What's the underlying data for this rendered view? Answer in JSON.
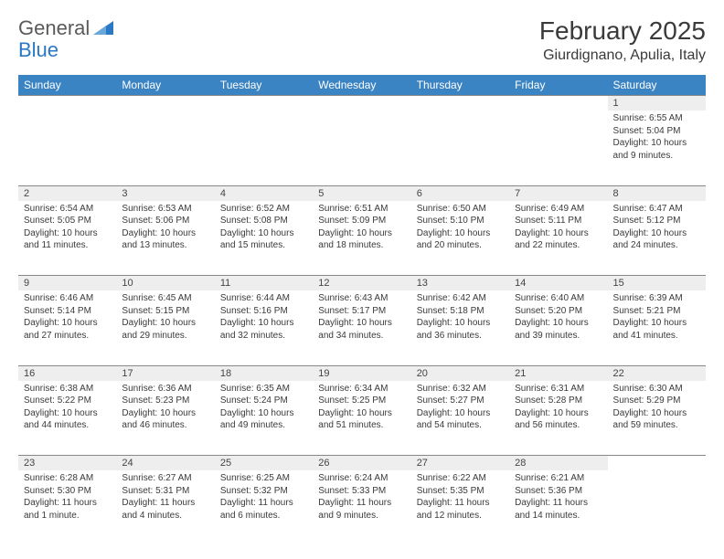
{
  "logo": {
    "word1": "General",
    "word2": "Blue"
  },
  "title": "February 2025",
  "location": "Giurdignano, Apulia, Italy",
  "colors": {
    "header_bg": "#3b84c4",
    "header_text": "#ffffff",
    "daynum_bg": "#eeeeee",
    "border": "#888888",
    "text": "#3a3a3a",
    "logo_gray": "#5a5a5a",
    "logo_blue": "#2b78c4"
  },
  "weekdays": [
    "Sunday",
    "Monday",
    "Tuesday",
    "Wednesday",
    "Thursday",
    "Friday",
    "Saturday"
  ],
  "layout": {
    "first_weekday_index": 6,
    "days_in_month": 28
  },
  "days": {
    "1": {
      "sunrise": "6:55 AM",
      "sunset": "5:04 PM",
      "daylight": "10 hours and 9 minutes."
    },
    "2": {
      "sunrise": "6:54 AM",
      "sunset": "5:05 PM",
      "daylight": "10 hours and 11 minutes."
    },
    "3": {
      "sunrise": "6:53 AM",
      "sunset": "5:06 PM",
      "daylight": "10 hours and 13 minutes."
    },
    "4": {
      "sunrise": "6:52 AM",
      "sunset": "5:08 PM",
      "daylight": "10 hours and 15 minutes."
    },
    "5": {
      "sunrise": "6:51 AM",
      "sunset": "5:09 PM",
      "daylight": "10 hours and 18 minutes."
    },
    "6": {
      "sunrise": "6:50 AM",
      "sunset": "5:10 PM",
      "daylight": "10 hours and 20 minutes."
    },
    "7": {
      "sunrise": "6:49 AM",
      "sunset": "5:11 PM",
      "daylight": "10 hours and 22 minutes."
    },
    "8": {
      "sunrise": "6:47 AM",
      "sunset": "5:12 PM",
      "daylight": "10 hours and 24 minutes."
    },
    "9": {
      "sunrise": "6:46 AM",
      "sunset": "5:14 PM",
      "daylight": "10 hours and 27 minutes."
    },
    "10": {
      "sunrise": "6:45 AM",
      "sunset": "5:15 PM",
      "daylight": "10 hours and 29 minutes."
    },
    "11": {
      "sunrise": "6:44 AM",
      "sunset": "5:16 PM",
      "daylight": "10 hours and 32 minutes."
    },
    "12": {
      "sunrise": "6:43 AM",
      "sunset": "5:17 PM",
      "daylight": "10 hours and 34 minutes."
    },
    "13": {
      "sunrise": "6:42 AM",
      "sunset": "5:18 PM",
      "daylight": "10 hours and 36 minutes."
    },
    "14": {
      "sunrise": "6:40 AM",
      "sunset": "5:20 PM",
      "daylight": "10 hours and 39 minutes."
    },
    "15": {
      "sunrise": "6:39 AM",
      "sunset": "5:21 PM",
      "daylight": "10 hours and 41 minutes."
    },
    "16": {
      "sunrise": "6:38 AM",
      "sunset": "5:22 PM",
      "daylight": "10 hours and 44 minutes."
    },
    "17": {
      "sunrise": "6:36 AM",
      "sunset": "5:23 PM",
      "daylight": "10 hours and 46 minutes."
    },
    "18": {
      "sunrise": "6:35 AM",
      "sunset": "5:24 PM",
      "daylight": "10 hours and 49 minutes."
    },
    "19": {
      "sunrise": "6:34 AM",
      "sunset": "5:25 PM",
      "daylight": "10 hours and 51 minutes."
    },
    "20": {
      "sunrise": "6:32 AM",
      "sunset": "5:27 PM",
      "daylight": "10 hours and 54 minutes."
    },
    "21": {
      "sunrise": "6:31 AM",
      "sunset": "5:28 PM",
      "daylight": "10 hours and 56 minutes."
    },
    "22": {
      "sunrise": "6:30 AM",
      "sunset": "5:29 PM",
      "daylight": "10 hours and 59 minutes."
    },
    "23": {
      "sunrise": "6:28 AM",
      "sunset": "5:30 PM",
      "daylight": "11 hours and 1 minute."
    },
    "24": {
      "sunrise": "6:27 AM",
      "sunset": "5:31 PM",
      "daylight": "11 hours and 4 minutes."
    },
    "25": {
      "sunrise": "6:25 AM",
      "sunset": "5:32 PM",
      "daylight": "11 hours and 6 minutes."
    },
    "26": {
      "sunrise": "6:24 AM",
      "sunset": "5:33 PM",
      "daylight": "11 hours and 9 minutes."
    },
    "27": {
      "sunrise": "6:22 AM",
      "sunset": "5:35 PM",
      "daylight": "11 hours and 12 minutes."
    },
    "28": {
      "sunrise": "6:21 AM",
      "sunset": "5:36 PM",
      "daylight": "11 hours and 14 minutes."
    }
  },
  "labels": {
    "sunrise": "Sunrise: ",
    "sunset": "Sunset: ",
    "daylight": "Daylight: "
  }
}
